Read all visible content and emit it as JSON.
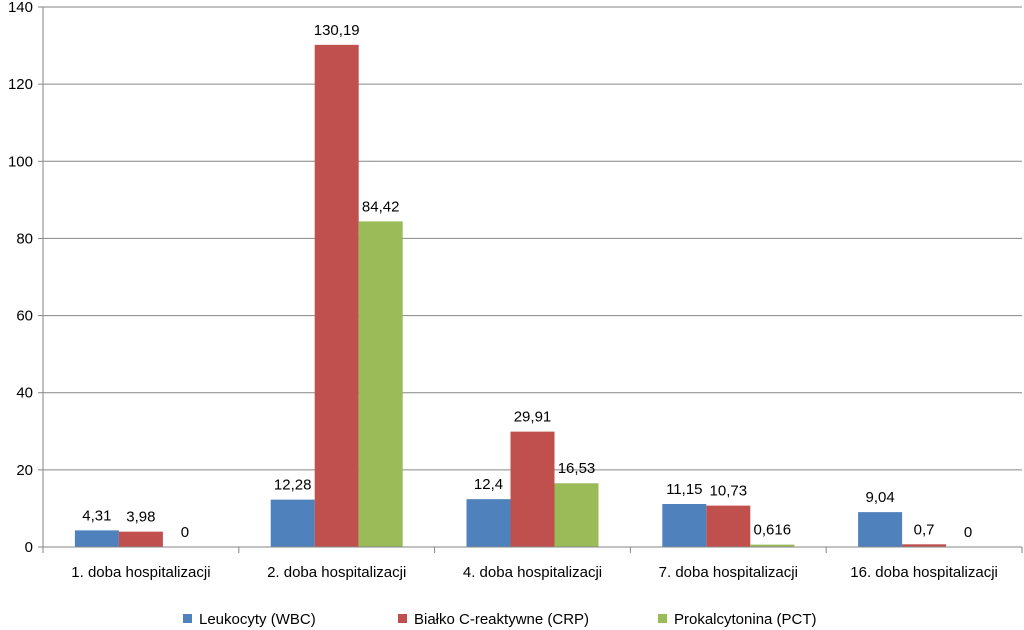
{
  "chart_data": {
    "type": "bar",
    "categories": [
      "1. doba hospitalizacji",
      "2. doba hospitalizacji",
      "4. doba hospitalizacji",
      "7. doba hospitalizacji",
      "16. doba hospitalizacji"
    ],
    "series": [
      {
        "name": "Leukocyty (WBC)",
        "values": [
          4.31,
          12.28,
          12.4,
          11.15,
          9.04
        ],
        "labels": [
          "4,31",
          "12,28",
          "12,4",
          "11,15",
          "9,04"
        ],
        "color": "#4F81BD"
      },
      {
        "name": "Białko C-reaktywne (CRP)",
        "values": [
          3.98,
          130.19,
          29.91,
          10.73,
          0.7
        ],
        "labels": [
          "3,98",
          "130,19",
          "29,91",
          "10,73",
          "0,7"
        ],
        "color": "#C0504D"
      },
      {
        "name": "Prokalcytonina (PCT)",
        "values": [
          0,
          84.42,
          16.53,
          0.616,
          0
        ],
        "labels": [
          "0",
          "84,42",
          "16,53",
          "0,616",
          "0"
        ],
        "color": "#9BBB59"
      }
    ],
    "title": "",
    "xlabel": "",
    "ylabel": "",
    "ylim": [
      0,
      140
    ],
    "yticks": [
      "0",
      "20",
      "40",
      "60",
      "80",
      "100",
      "120",
      "140"
    ],
    "grid": true,
    "legend_position": "bottom"
  }
}
